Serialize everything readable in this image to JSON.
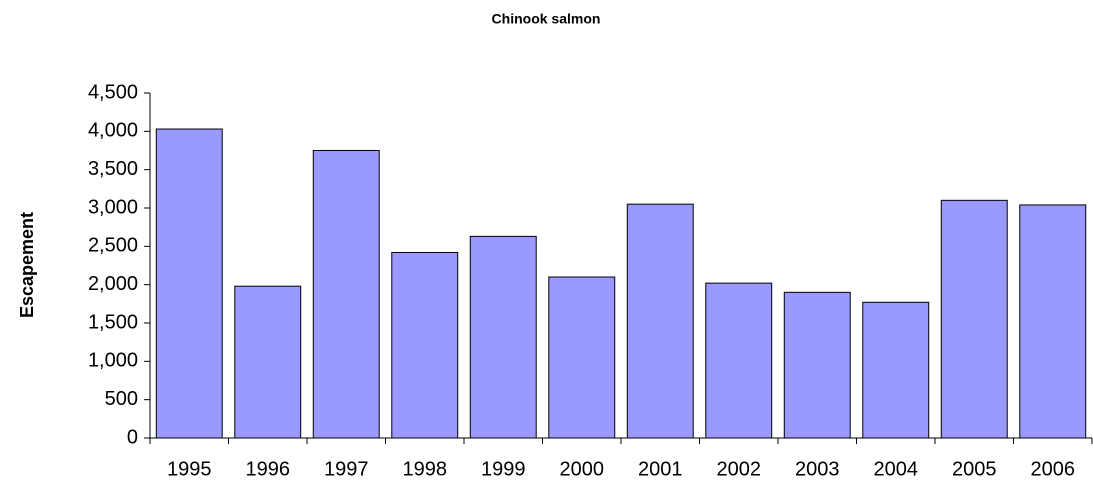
{
  "chart_data": {
    "type": "bar",
    "title": "Chinook salmon",
    "y_label": "Escapement",
    "categories": [
      "1995",
      "1996",
      "1997",
      "1998",
      "1999",
      "2000",
      "2001",
      "2002",
      "2003",
      "2004",
      "2005",
      "2006"
    ],
    "values": [
      4030,
      1980,
      3750,
      2420,
      2630,
      2100,
      3050,
      2020,
      1900,
      1770,
      3100,
      3040
    ],
    "color": "#9999ff",
    "ylim": [
      0,
      4500
    ],
    "yticks": [
      0,
      500,
      {
        "value": 1000,
        "label": "1,000"
      },
      {
        "value": 1500,
        "label": "1,500"
      },
      {
        "value": 2000,
        "label": "2,000"
      },
      {
        "value": 2500,
        "label": "2,500"
      },
      {
        "value": 3000,
        "label": "3,000"
      },
      {
        "value": 3500,
        "label": "3,500"
      },
      {
        "value": 4000,
        "label": "4,000"
      },
      {
        "value": 4500,
        "label": "4,500"
      }
    ],
    "grid": false
  }
}
